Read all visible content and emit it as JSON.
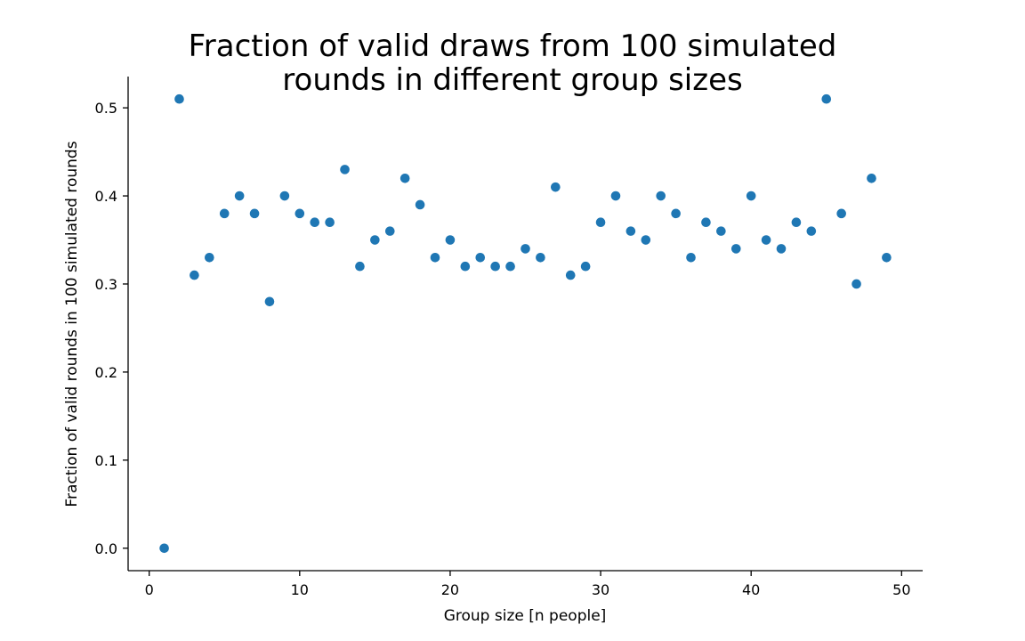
{
  "chart_data": {
    "type": "scatter",
    "title": [
      "Fraction of valid draws from 100 simulated",
      "rounds in different group sizes"
    ],
    "xlabel": "Group size [n people]",
    "ylabel": "Fraction of valid rounds in 100 simulated rounds",
    "xlim": [
      -1.4,
      51.4
    ],
    "ylim": [
      -0.0255,
      0.5355
    ],
    "xticks": [
      0,
      10,
      20,
      30,
      40,
      50
    ],
    "yticks": [
      0.0,
      0.1,
      0.2,
      0.3,
      0.4,
      0.5
    ],
    "xtick_labels": [
      "0",
      "10",
      "20",
      "30",
      "40",
      "50"
    ],
    "ytick_labels": [
      "0.0",
      "0.1",
      "0.2",
      "0.3",
      "0.4",
      "0.5"
    ],
    "grid": false,
    "color": "#1f77b4",
    "x": [
      1,
      2,
      3,
      4,
      5,
      6,
      7,
      8,
      9,
      10,
      11,
      12,
      13,
      14,
      15,
      16,
      17,
      18,
      19,
      20,
      21,
      22,
      23,
      24,
      25,
      26,
      27,
      28,
      29,
      30,
      31,
      32,
      33,
      34,
      35,
      36,
      37,
      38,
      39,
      40,
      41,
      42,
      43,
      44,
      45,
      46,
      47,
      48,
      49
    ],
    "y": [
      0.0,
      0.51,
      0.31,
      0.33,
      0.38,
      0.4,
      0.38,
      0.28,
      0.4,
      0.38,
      0.37,
      0.37,
      0.43,
      0.32,
      0.35,
      0.36,
      0.42,
      0.39,
      0.33,
      0.35,
      0.32,
      0.33,
      0.32,
      0.32,
      0.34,
      0.33,
      0.41,
      0.31,
      0.32,
      0.37,
      0.4,
      0.36,
      0.35,
      0.4,
      0.38,
      0.33,
      0.37,
      0.36,
      0.34,
      0.4,
      0.35,
      0.34,
      0.37,
      0.36,
      0.51,
      0.38,
      0.3,
      0.42,
      0.33
    ]
  }
}
